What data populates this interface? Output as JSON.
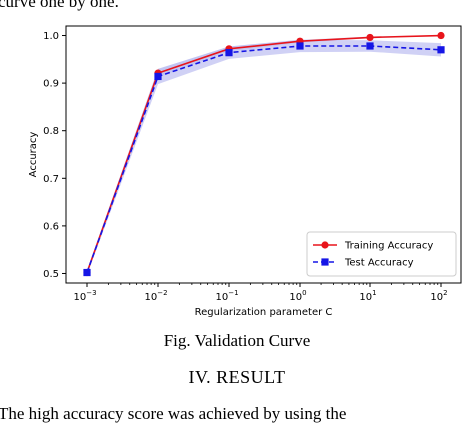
{
  "page": {
    "top_text": "curve one by one.",
    "figure_caption": "Fig. Validation Curve",
    "section_heading": "IV.   RESULT",
    "bottom_text": "The high accuracy score was achieved by using the"
  },
  "chart_data": {
    "type": "line",
    "title": "",
    "xlabel": "Regularization parameter C",
    "ylabel": "Accuracy",
    "x": [
      0.001,
      0.01,
      0.1,
      1,
      10,
      100
    ],
    "x_tick_labels": [
      {
        "base": "10",
        "exp": "−3"
      },
      {
        "base": "10",
        "exp": "−2"
      },
      {
        "base": "10",
        "exp": "−1"
      },
      {
        "base": "10",
        "exp": "0"
      },
      {
        "base": "10",
        "exp": "1"
      },
      {
        "base": "10",
        "exp": "2"
      }
    ],
    "x_scale": "log",
    "y_ticks": [
      "0.5",
      "0.6",
      "0.7",
      "0.8",
      "0.9",
      "1.0"
    ],
    "ylim": [
      0.48,
      1.02
    ],
    "grid": false,
    "legend_position": "bottom-right",
    "series": [
      {
        "name": "Training Accuracy",
        "color": "#e8141b",
        "marker": "circle",
        "line_style": "solid",
        "values": [
          0.502,
          0.921,
          0.972,
          0.988,
          0.996,
          1.0
        ],
        "band": [
          [
            0.499,
            0.505
          ],
          [
            0.912,
            0.93
          ],
          [
            0.967,
            0.977
          ],
          [
            0.985,
            0.991
          ],
          [
            0.994,
            0.998
          ],
          [
            0.999,
            1.001
          ]
        ]
      },
      {
        "name": "Test Accuracy",
        "color": "#1515e6",
        "marker": "square",
        "line_style": "dashed",
        "values": [
          0.502,
          0.914,
          0.964,
          0.978,
          0.978,
          0.97
        ],
        "band": [
          [
            0.497,
            0.507
          ],
          [
            0.898,
            0.93
          ],
          [
            0.951,
            0.977
          ],
          [
            0.965,
            0.991
          ],
          [
            0.966,
            0.99
          ],
          [
            0.956,
            0.984
          ]
        ]
      }
    ],
    "band_color": "#a9acec"
  }
}
